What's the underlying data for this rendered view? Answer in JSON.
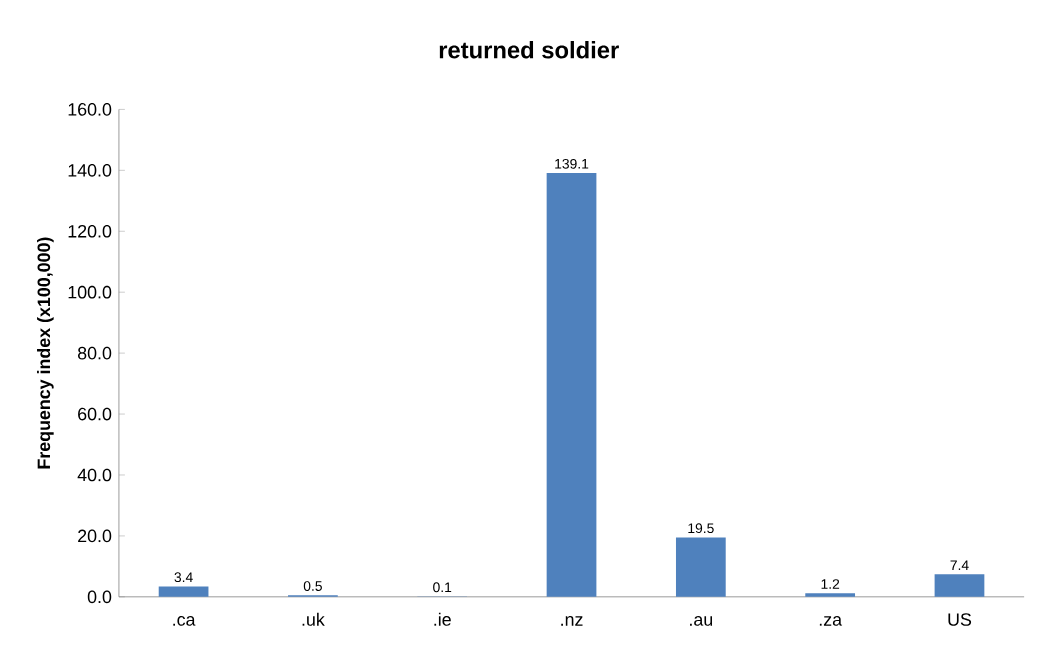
{
  "chart_data": {
    "type": "bar",
    "title": "returned soldier",
    "ylabel": "Frequency index (x100,000)",
    "categories": [
      ".ca",
      ".uk",
      ".ie",
      ".nz",
      ".au",
      ".za",
      "US"
    ],
    "values": [
      3.4,
      0.5,
      0.1,
      139.1,
      19.5,
      1.2,
      7.4
    ],
    "color": "#4f81bd",
    "ylim": [
      0,
      160
    ],
    "yticks": [
      {
        "value": 0,
        "label": "0.0"
      },
      {
        "value": 20,
        "label": "20.0"
      },
      {
        "value": 40,
        "label": "40.0"
      },
      {
        "value": 60,
        "label": "60.0"
      },
      {
        "value": 80,
        "label": "80.0"
      },
      {
        "value": 100,
        "label": "100.0"
      },
      {
        "value": 120,
        "label": "120.0"
      },
      {
        "value": 140,
        "label": "140.0"
      },
      {
        "value": 160,
        "label": "160.0"
      }
    ],
    "data_labels": true
  }
}
